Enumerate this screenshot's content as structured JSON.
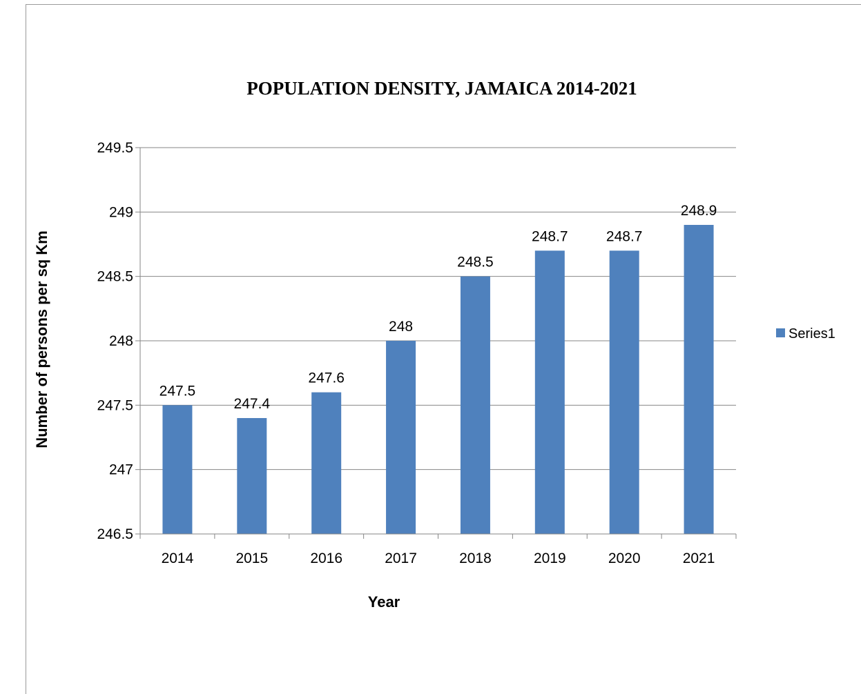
{
  "chart_data": {
    "type": "bar",
    "title": "POPULATION DENSITY, JAMAICA 2014-2021",
    "xlabel": "Year",
    "ylabel": "Number of persons  per sq Km",
    "categories": [
      "2014",
      "2015",
      "2016",
      "2017",
      "2018",
      "2019",
      "2020",
      "2021"
    ],
    "series": [
      {
        "name": "Series1",
        "values": [
          247.5,
          247.4,
          247.6,
          248,
          248.5,
          248.7,
          248.7,
          248.9
        ],
        "labels": [
          "247.5",
          "247.4",
          "247.6",
          "248",
          "248.5",
          "248.7",
          "248.7",
          "248.9"
        ],
        "color": "#4f81bd"
      }
    ],
    "ylim": [
      246.5,
      249.5
    ],
    "yticks": [
      "246.5",
      "247",
      "247.5",
      "248",
      "248.5",
      "249",
      "249.5"
    ],
    "grid": true,
    "legend_position": "right"
  }
}
